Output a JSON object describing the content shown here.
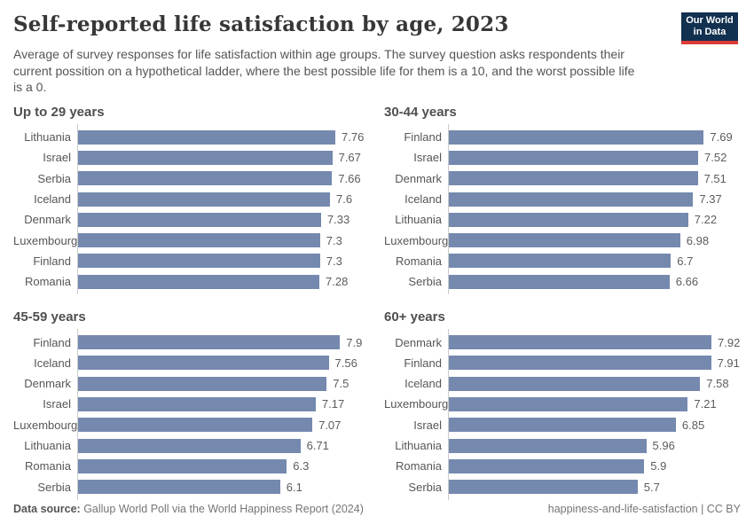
{
  "header": {
    "title": "Self-reported life satisfaction by age, 2023",
    "logo": {
      "line1": "Our World",
      "line2": "in Data",
      "bg": "#12304f",
      "accent": "#dc3b35"
    }
  },
  "subtitle": "Average of survey responses for life satisfaction within age groups. The survey question asks respondents their current possition on a hypothetical ladder, where the best possible life for them is a 10, and the worst possible life is a 0.",
  "colors": {
    "bar": "#7589ae",
    "axis_line": "#cccccc",
    "label_text": "#565656"
  },
  "chart_data": {
    "type": "bar",
    "orientation": "horizontal",
    "title": "Self-reported life satisfaction by age, 2023",
    "xlim": [
      0,
      8
    ],
    "grid": false,
    "legend": false,
    "panels": [
      {
        "title": "Up to 29 years",
        "categories": [
          "Lithuania",
          "Israel",
          "Serbia",
          "Iceland",
          "Denmark",
          "Luxembourg",
          "Finland",
          "Romania"
        ],
        "values": [
          7.76,
          7.67,
          7.66,
          7.6,
          7.33,
          7.3,
          7.3,
          7.28
        ],
        "value_labels": [
          "7.76",
          "7.67",
          "7.66",
          "7.6",
          "7.33",
          "7.3",
          "7.3",
          "7.28"
        ]
      },
      {
        "title": "30-44 years",
        "categories": [
          "Finland",
          "Israel",
          "Denmark",
          "Iceland",
          "Lithuania",
          "Luxembourg",
          "Romania",
          "Serbia"
        ],
        "values": [
          7.69,
          7.52,
          7.51,
          7.37,
          7.22,
          6.98,
          6.7,
          6.66
        ],
        "value_labels": [
          "7.69",
          "7.52",
          "7.51",
          "7.37",
          "7.22",
          "6.98",
          "6.7",
          "6.66"
        ]
      },
      {
        "title": "45-59 years",
        "categories": [
          "Finland",
          "Iceland",
          "Denmark",
          "Israel",
          "Luxembourg",
          "Lithuania",
          "Romania",
          "Serbia"
        ],
        "values": [
          7.9,
          7.56,
          7.5,
          7.17,
          7.07,
          6.71,
          6.3,
          6.1
        ],
        "value_labels": [
          "7.9",
          "7.56",
          "7.5",
          "7.17",
          "7.07",
          "6.71",
          "6.3",
          "6.1"
        ]
      },
      {
        "title": "60+ years",
        "categories": [
          "Denmark",
          "Finland",
          "Iceland",
          "Luxembourg",
          "Israel",
          "Lithuania",
          "Romania",
          "Serbia"
        ],
        "values": [
          7.92,
          7.91,
          7.58,
          7.21,
          6.85,
          5.96,
          5.9,
          5.7
        ],
        "value_labels": [
          "7.92",
          "7.91",
          "7.58",
          "7.21",
          "6.85",
          "5.96",
          "5.9",
          "5.7"
        ]
      }
    ]
  },
  "footer": {
    "source_label": "Data source:",
    "source_text": " Gallup World Poll via the World Happiness Report (2024)",
    "right_text": "happiness-and-life-satisfaction | CC BY"
  }
}
